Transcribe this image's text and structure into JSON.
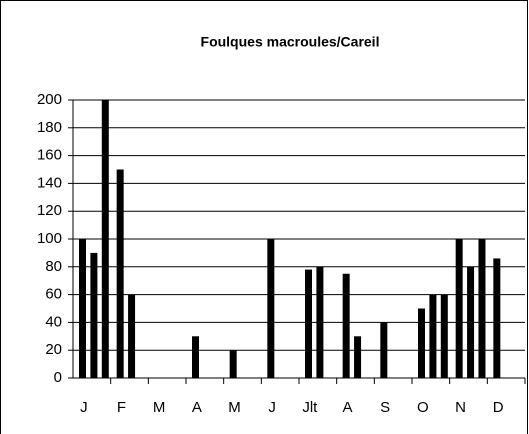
{
  "chart_data": {
    "type": "bar",
    "title": "Foulques macroules/Careil",
    "categories": [
      "J",
      "F",
      "M",
      "A",
      "M",
      "J",
      "Jlt",
      "A",
      "S",
      "O",
      "N",
      "D"
    ],
    "values": [
      [
        100,
        90,
        200
      ],
      [
        150,
        60
      ],
      [],
      [
        30
      ],
      [
        20
      ],
      [
        100
      ],
      [
        78,
        80
      ],
      [
        75,
        30
      ],
      [
        40
      ],
      [
        50,
        60,
        60
      ],
      [
        100,
        80,
        100
      ],
      [
        86
      ]
    ],
    "color": "#000000",
    "ylim": [
      0,
      200
    ],
    "yticks": [
      0,
      20,
      40,
      60,
      80,
      100,
      120,
      140,
      160,
      180,
      200
    ],
    "grid": true
  }
}
